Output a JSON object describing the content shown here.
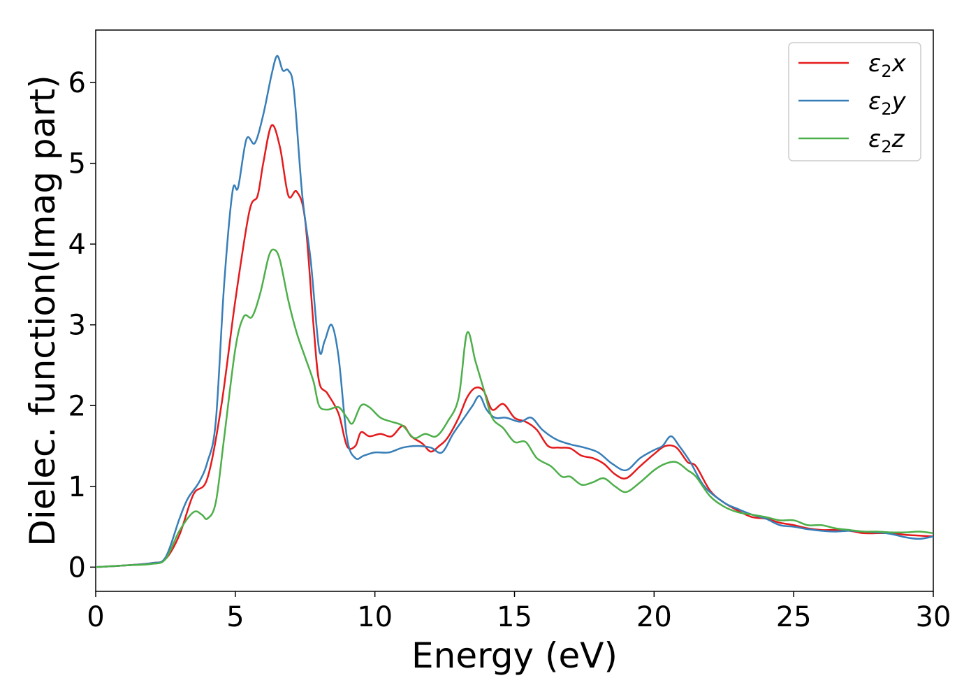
{
  "chart_data": {
    "type": "line",
    "xlabel": "Energy (eV)",
    "ylabel": "Dielec. function(Imag part)",
    "xlim": [
      0,
      30
    ],
    "ylim": [
      -0.3,
      6.65
    ],
    "xticks": [
      "0",
      "5",
      "10",
      "15",
      "20",
      "25",
      "30"
    ],
    "yticks": [
      "0",
      "1",
      "2",
      "3",
      "4",
      "5",
      "6"
    ],
    "grid": false,
    "legend_position": "top-right",
    "series": [
      {
        "name": "ε2x",
        "legend_base": "ε",
        "legend_sub": "2",
        "legend_suffix": "x",
        "color": "#e41a1c",
        "points": [
          [
            0,
            0
          ],
          [
            1,
            0.02
          ],
          [
            2,
            0.05
          ],
          [
            2.5,
            0.1
          ],
          [
            3,
            0.4
          ],
          [
            3.5,
            0.9
          ],
          [
            4,
            1.1
          ],
          [
            4.5,
            2.0
          ],
          [
            5,
            3.3
          ],
          [
            5.5,
            4.4
          ],
          [
            5.8,
            4.6
          ],
          [
            6,
            5.0
          ],
          [
            6.3,
            5.47
          ],
          [
            6.6,
            5.2
          ],
          [
            6.9,
            4.6
          ],
          [
            7.2,
            4.65
          ],
          [
            7.5,
            4.3
          ],
          [
            7.8,
            3.0
          ],
          [
            8,
            2.3
          ],
          [
            8.3,
            2.15
          ],
          [
            8.7,
            1.9
          ],
          [
            9,
            1.5
          ],
          [
            9.3,
            1.5
          ],
          [
            9.5,
            1.67
          ],
          [
            9.8,
            1.62
          ],
          [
            10.2,
            1.65
          ],
          [
            10.6,
            1.62
          ],
          [
            11,
            1.75
          ],
          [
            11.3,
            1.62
          ],
          [
            11.7,
            1.53
          ],
          [
            12,
            1.43
          ],
          [
            12.3,
            1.5
          ],
          [
            12.6,
            1.6
          ],
          [
            13,
            1.85
          ],
          [
            13.3,
            2.1
          ],
          [
            13.6,
            2.22
          ],
          [
            13.9,
            2.18
          ],
          [
            14.2,
            1.95
          ],
          [
            14.6,
            2.02
          ],
          [
            15,
            1.85
          ],
          [
            15.4,
            1.8
          ],
          [
            15.8,
            1.7
          ],
          [
            16.2,
            1.5
          ],
          [
            16.6,
            1.48
          ],
          [
            17,
            1.47
          ],
          [
            17.4,
            1.38
          ],
          [
            17.8,
            1.35
          ],
          [
            18.2,
            1.28
          ],
          [
            18.6,
            1.15
          ],
          [
            19,
            1.1
          ],
          [
            19.5,
            1.25
          ],
          [
            20,
            1.4
          ],
          [
            20.4,
            1.5
          ],
          [
            20.8,
            1.48
          ],
          [
            21.2,
            1.3
          ],
          [
            21.5,
            1.25
          ],
          [
            22,
            0.95
          ],
          [
            22.5,
            0.8
          ],
          [
            23,
            0.7
          ],
          [
            23.5,
            0.62
          ],
          [
            24,
            0.6
          ],
          [
            24.5,
            0.55
          ],
          [
            25,
            0.52
          ],
          [
            25.5,
            0.48
          ],
          [
            26,
            0.46
          ],
          [
            26.5,
            0.46
          ],
          [
            27,
            0.45
          ],
          [
            27.5,
            0.42
          ],
          [
            28,
            0.42
          ],
          [
            28.5,
            0.42
          ],
          [
            29,
            0.4
          ],
          [
            29.5,
            0.39
          ],
          [
            30,
            0.38
          ]
        ]
      },
      {
        "name": "ε2y",
        "legend_base": "ε",
        "legend_sub": "2",
        "legend_suffix": "y",
        "color": "#377eb8",
        "points": [
          [
            0,
            0
          ],
          [
            1,
            0.02
          ],
          [
            2,
            0.05
          ],
          [
            2.5,
            0.12
          ],
          [
            3,
            0.6
          ],
          [
            3.3,
            0.85
          ],
          [
            3.7,
            1.05
          ],
          [
            4,
            1.3
          ],
          [
            4.3,
            1.8
          ],
          [
            4.6,
            3.5
          ],
          [
            4.9,
            4.65
          ],
          [
            5.1,
            4.7
          ],
          [
            5.4,
            5.3
          ],
          [
            5.7,
            5.25
          ],
          [
            6,
            5.6
          ],
          [
            6.3,
            6.1
          ],
          [
            6.5,
            6.33
          ],
          [
            6.7,
            6.15
          ],
          [
            6.9,
            6.15
          ],
          [
            7.1,
            5.9
          ],
          [
            7.4,
            4.6
          ],
          [
            7.7,
            3.8
          ],
          [
            8,
            2.7
          ],
          [
            8.2,
            2.8
          ],
          [
            8.45,
            3.0
          ],
          [
            8.7,
            2.6
          ],
          [
            9,
            1.6
          ],
          [
            9.3,
            1.35
          ],
          [
            9.6,
            1.38
          ],
          [
            10,
            1.42
          ],
          [
            10.5,
            1.42
          ],
          [
            11,
            1.48
          ],
          [
            11.5,
            1.5
          ],
          [
            12,
            1.48
          ],
          [
            12.4,
            1.42
          ],
          [
            12.8,
            1.65
          ],
          [
            13.2,
            1.85
          ],
          [
            13.5,
            2.0
          ],
          [
            13.75,
            2.12
          ],
          [
            14,
            1.95
          ],
          [
            14.3,
            1.85
          ],
          [
            14.7,
            1.85
          ],
          [
            15.2,
            1.8
          ],
          [
            15.6,
            1.85
          ],
          [
            16,
            1.7
          ],
          [
            16.5,
            1.58
          ],
          [
            17,
            1.52
          ],
          [
            17.5,
            1.48
          ],
          [
            18,
            1.42
          ],
          [
            18.5,
            1.28
          ],
          [
            19,
            1.2
          ],
          [
            19.5,
            1.35
          ],
          [
            20,
            1.45
          ],
          [
            20.3,
            1.5
          ],
          [
            20.6,
            1.62
          ],
          [
            20.9,
            1.5
          ],
          [
            21.3,
            1.3
          ],
          [
            21.8,
            1.0
          ],
          [
            22.5,
            0.8
          ],
          [
            23,
            0.72
          ],
          [
            23.5,
            0.65
          ],
          [
            24,
            0.6
          ],
          [
            24.5,
            0.52
          ],
          [
            25,
            0.5
          ],
          [
            25.5,
            0.47
          ],
          [
            26,
            0.45
          ],
          [
            26.5,
            0.44
          ],
          [
            27,
            0.45
          ],
          [
            27.5,
            0.44
          ],
          [
            28,
            0.43
          ],
          [
            28.5,
            0.41
          ],
          [
            29,
            0.37
          ],
          [
            29.5,
            0.35
          ],
          [
            30,
            0.38
          ]
        ]
      },
      {
        "name": "ε2z",
        "legend_base": "ε",
        "legend_sub": "2",
        "legend_suffix": "z",
        "color": "#4daf4a",
        "points": [
          [
            0,
            0
          ],
          [
            1,
            0.02
          ],
          [
            2,
            0.04
          ],
          [
            2.5,
            0.1
          ],
          [
            3,
            0.45
          ],
          [
            3.5,
            0.68
          ],
          [
            3.8,
            0.65
          ],
          [
            4,
            0.6
          ],
          [
            4.3,
            0.8
          ],
          [
            4.6,
            1.6
          ],
          [
            5,
            2.7
          ],
          [
            5.3,
            3.1
          ],
          [
            5.6,
            3.1
          ],
          [
            5.9,
            3.4
          ],
          [
            6.2,
            3.85
          ],
          [
            6.4,
            3.93
          ],
          [
            6.6,
            3.8
          ],
          [
            6.9,
            3.3
          ],
          [
            7.2,
            2.9
          ],
          [
            7.5,
            2.6
          ],
          [
            7.8,
            2.3
          ],
          [
            8,
            2.0
          ],
          [
            8.3,
            1.95
          ],
          [
            8.7,
            1.98
          ],
          [
            9,
            1.85
          ],
          [
            9.2,
            1.78
          ],
          [
            9.5,
            2.0
          ],
          [
            9.8,
            1.98
          ],
          [
            10.2,
            1.85
          ],
          [
            10.6,
            1.8
          ],
          [
            11,
            1.75
          ],
          [
            11.4,
            1.6
          ],
          [
            11.8,
            1.65
          ],
          [
            12.2,
            1.62
          ],
          [
            12.6,
            1.8
          ],
          [
            13,
            2.1
          ],
          [
            13.3,
            2.9
          ],
          [
            13.6,
            2.55
          ],
          [
            13.9,
            2.2
          ],
          [
            14.2,
            1.85
          ],
          [
            14.6,
            1.72
          ],
          [
            15,
            1.55
          ],
          [
            15.4,
            1.55
          ],
          [
            15.8,
            1.35
          ],
          [
            16.3,
            1.25
          ],
          [
            16.7,
            1.12
          ],
          [
            17,
            1.12
          ],
          [
            17.4,
            1.02
          ],
          [
            17.8,
            1.05
          ],
          [
            18.2,
            1.1
          ],
          [
            18.6,
            1.0
          ],
          [
            19,
            0.93
          ],
          [
            19.5,
            1.05
          ],
          [
            20,
            1.2
          ],
          [
            20.4,
            1.28
          ],
          [
            20.8,
            1.3
          ],
          [
            21.2,
            1.2
          ],
          [
            21.5,
            1.12
          ],
          [
            22,
            0.88
          ],
          [
            22.5,
            0.75
          ],
          [
            23,
            0.68
          ],
          [
            23.5,
            0.65
          ],
          [
            24,
            0.62
          ],
          [
            24.5,
            0.58
          ],
          [
            25,
            0.58
          ],
          [
            25.5,
            0.52
          ],
          [
            26,
            0.52
          ],
          [
            26.5,
            0.48
          ],
          [
            27,
            0.46
          ],
          [
            27.5,
            0.44
          ],
          [
            28,
            0.44
          ],
          [
            28.5,
            0.43
          ],
          [
            29,
            0.43
          ],
          [
            29.5,
            0.44
          ],
          [
            30,
            0.42
          ]
        ]
      }
    ]
  }
}
